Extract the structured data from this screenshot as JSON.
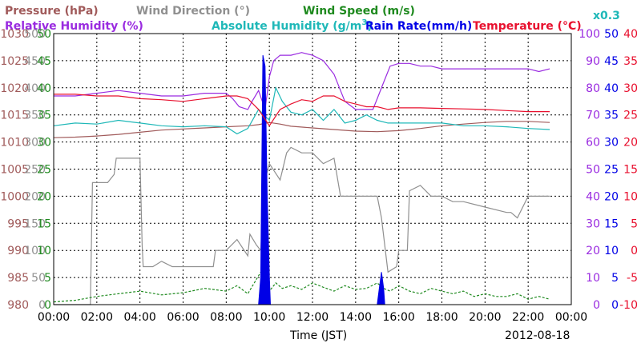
{
  "chart_data": {
    "type": "line",
    "xlabel": "Time (JST)",
    "date_label": "2012-08-18",
    "x_ticks": [
      "00:00",
      "02:00",
      "04:00",
      "06:00",
      "08:00",
      "10:00",
      "12:00",
      "14:00",
      "16:00",
      "18:00",
      "20:00",
      "22:00",
      "00:00"
    ],
    "legend": {
      "pressure": "Pressure (hPa)",
      "wind_direction": "Wind Direction (°)",
      "wind_speed": "Wind Speed (m/s)",
      "relative_humidity": "Relative Humidity (%)",
      "absolute_humidity": "Absolute Humidity (g/m",
      "absolute_humidity_sup": "3",
      "absolute_humidity_close": ")",
      "rain_rate": "Rain Rate(mm/h)",
      "temperature": "Temperature (°C)",
      "scale_note": "x0.3"
    },
    "axes": {
      "pressure": {
        "range": [
          980,
          1030
        ],
        "ticks": [
          "1030",
          "1025",
          "1020",
          "1015",
          "1010",
          "1005",
          "1000",
          "995",
          "990",
          "985",
          "980"
        ]
      },
      "wind_direction": {
        "range": [
          0,
          500
        ],
        "ticks": [
          "500",
          "450",
          "400",
          "350",
          "300",
          "250",
          "200",
          "150",
          "100",
          "50",
          "0"
        ]
      },
      "wind_speed": {
        "range": [
          0,
          50
        ],
        "ticks": [
          "50",
          "45",
          "40",
          "35",
          "30",
          "25",
          "20",
          "15",
          "10",
          "5",
          "0"
        ]
      },
      "relative_humidity": {
        "range": [
          0,
          100
        ],
        "ticks": [
          "100",
          "90",
          "80",
          "70",
          "60",
          "50",
          "40",
          "30",
          "20",
          "10",
          "0"
        ]
      },
      "rain_rate": {
        "range": [
          0,
          50
        ],
        "ticks": [
          "50",
          "45",
          "40",
          "35",
          "30",
          "25",
          "20",
          "15",
          "10",
          "5",
          "0"
        ]
      },
      "temperature": {
        "range": [
          -10,
          40
        ],
        "ticks": [
          "40",
          "35",
          "30",
          "25",
          "20",
          "15",
          "10",
          "5",
          "0",
          "-5",
          "-10"
        ]
      }
    },
    "series": [
      {
        "name": "Pressure (hPa)",
        "color": "#a05a5a",
        "axis": "pressure",
        "x": [
          0,
          1,
          2,
          3,
          4,
          5,
          6,
          7,
          8,
          9,
          9.5,
          10,
          10.5,
          11,
          12,
          13,
          14,
          15,
          16,
          17,
          18,
          19,
          20,
          21,
          22,
          23
        ],
        "y": [
          1010.8,
          1010.9,
          1011.1,
          1011.4,
          1011.8,
          1012.2,
          1012.4,
          1012.6,
          1012.8,
          1013.0,
          1013.2,
          1013.6,
          1013.3,
          1012.9,
          1012.6,
          1012.3,
          1012.0,
          1011.9,
          1012.1,
          1012.5,
          1013.0,
          1013.3,
          1013.6,
          1013.8,
          1013.8,
          1013.6
        ]
      },
      {
        "name": "Wind Direction (°)",
        "color": "#909090",
        "axis": "wind_direction",
        "x": [
          0,
          1.7,
          1.8,
          2.5,
          2.8,
          2.9,
          3.5,
          4.0,
          4.1,
          4.15,
          4.6,
          5.0,
          5.5,
          6.0,
          7.0,
          7.4,
          7.5,
          8.0,
          8.5,
          9.0,
          9.1,
          9.4,
          9.6,
          9.8,
          10.0,
          10.5,
          10.8,
          11.0,
          11.5,
          12.0,
          12.5,
          13.0,
          13.3,
          13.5,
          14.0,
          14.5,
          14.8,
          15.0,
          15.2,
          15.5,
          15.9,
          16.0,
          16.4,
          16.5,
          17.0,
          17.5,
          18.0,
          18.5,
          19.0,
          20.0,
          21.0,
          21.2,
          21.5,
          22.0,
          22.5,
          23.0
        ],
        "y": [
          0,
          0,
          225,
          225,
          240,
          270,
          270,
          270,
          110,
          70,
          70,
          80,
          70,
          70,
          70,
          70,
          100,
          100,
          120,
          90,
          130,
          110,
          100,
          230,
          260,
          230,
          280,
          290,
          280,
          280,
          260,
          270,
          200,
          200,
          200,
          200,
          200,
          200,
          160,
          60,
          70,
          100,
          100,
          210,
          220,
          200,
          200,
          190,
          190,
          180,
          170,
          170,
          160,
          200,
          200,
          200
        ]
      },
      {
        "name": "Wind Speed (m/s)",
        "color": "#1f8a1f",
        "dashed": true,
        "axis": "wind_speed",
        "x": [
          0,
          1,
          2,
          3,
          4,
          5,
          6,
          7,
          8,
          8.5,
          9,
          9.3,
          9.6,
          9.8,
          10,
          10.3,
          10.6,
          11,
          11.5,
          12,
          12.5,
          13,
          13.5,
          14,
          14.5,
          15,
          15.3,
          15.6,
          16,
          16.5,
          17,
          17.5,
          18,
          18.5,
          19,
          19.5,
          20,
          20.5,
          21,
          21.5,
          22,
          22.5,
          23
        ],
        "y": [
          0.5,
          0.8,
          1.5,
          2,
          2.5,
          1.8,
          2.2,
          3,
          2.5,
          3.5,
          2,
          4,
          6,
          3.5,
          2.5,
          4,
          3,
          3.5,
          2.8,
          4,
          3.2,
          2.5,
          3.5,
          2.8,
          3,
          4,
          3,
          2.5,
          3.5,
          2.5,
          2,
          3,
          2.5,
          2,
          2.5,
          1.5,
          2,
          1.5,
          1.5,
          2,
          1,
          1.5,
          1
        ]
      },
      {
        "name": "Relative Humidity (%)",
        "color": "#9a2be0",
        "axis": "relative_humidity",
        "x": [
          0,
          1,
          2,
          3,
          4,
          5,
          6,
          7,
          8,
          8.3,
          8.6,
          9,
          9.2,
          9.5,
          9.8,
          10.0,
          10.2,
          10.5,
          11,
          11.5,
          12,
          12.5,
          13,
          13.5,
          14,
          14.3,
          14.5,
          14.8,
          15.0,
          15.3,
          15.6,
          16,
          16.5,
          17,
          17.5,
          18,
          18.5,
          19,
          20,
          21,
          22,
          22.5,
          23
        ],
        "y": [
          77,
          77,
          78,
          79,
          78,
          77,
          77,
          78,
          78,
          76,
          73,
          72,
          75,
          79,
          72,
          84,
          90,
          92,
          92,
          93,
          92,
          90,
          85,
          75,
          72,
          72,
          72,
          72,
          76,
          82,
          88,
          89,
          89,
          88,
          88,
          87,
          87,
          87,
          87,
          87,
          87,
          86,
          87
        ]
      },
      {
        "name": "Absolute Humidity (g/m3)",
        "color": "#1fb8b8",
        "axis": "temperature",
        "x": [
          0,
          1,
          2,
          3,
          4,
          5,
          6,
          7,
          8,
          8.5,
          9,
          9.5,
          10,
          10.3,
          10.6,
          11,
          11.5,
          12,
          12.5,
          13,
          13.5,
          14,
          14.5,
          15,
          15.5,
          16,
          17,
          18,
          19,
          20,
          21,
          22,
          23
        ],
        "y": [
          23,
          23.5,
          23.3,
          24,
          23.5,
          23,
          22.8,
          23,
          22.8,
          21.5,
          22.5,
          26,
          24,
          30,
          27.5,
          25.5,
          25,
          26,
          24,
          26,
          23.5,
          24,
          25,
          24,
          23.5,
          23.5,
          23.5,
          23.5,
          23,
          23,
          22.8,
          22.5,
          22.3
        ]
      },
      {
        "name": "Rain Rate(mm/h)",
        "color": "#0000e6",
        "axis": "rain_rate",
        "fill": true,
        "x": [
          9.5,
          9.6,
          9.7,
          9.8,
          9.9,
          10.0,
          10.05,
          15.0,
          15.1,
          15.2,
          15.3,
          15.35
        ],
        "y": [
          0,
          5,
          46,
          44,
          20,
          5,
          0,
          0,
          3,
          6,
          3,
          0
        ]
      },
      {
        "name": "Temperature (°C)",
        "color": "#e8102e",
        "axis": "temperature",
        "x": [
          0,
          1,
          2,
          3,
          4,
          5,
          6,
          7,
          8,
          8.5,
          9,
          9.5,
          10,
          10.5,
          11,
          11.5,
          12,
          12.5,
          13,
          13.5,
          14,
          14.5,
          15,
          15.5,
          16,
          17,
          18,
          19,
          20,
          21,
          22,
          23
        ],
        "y": [
          28.8,
          28.8,
          28.5,
          28.5,
          28,
          27.8,
          27.5,
          28,
          28.5,
          28.5,
          28,
          26,
          23,
          26,
          27,
          27.8,
          27.5,
          28.5,
          28.5,
          27.5,
          27,
          26.5,
          26.5,
          26,
          26.3,
          26.3,
          26.2,
          26.1,
          26,
          25.8,
          25.6,
          25.6
        ]
      }
    ]
  }
}
